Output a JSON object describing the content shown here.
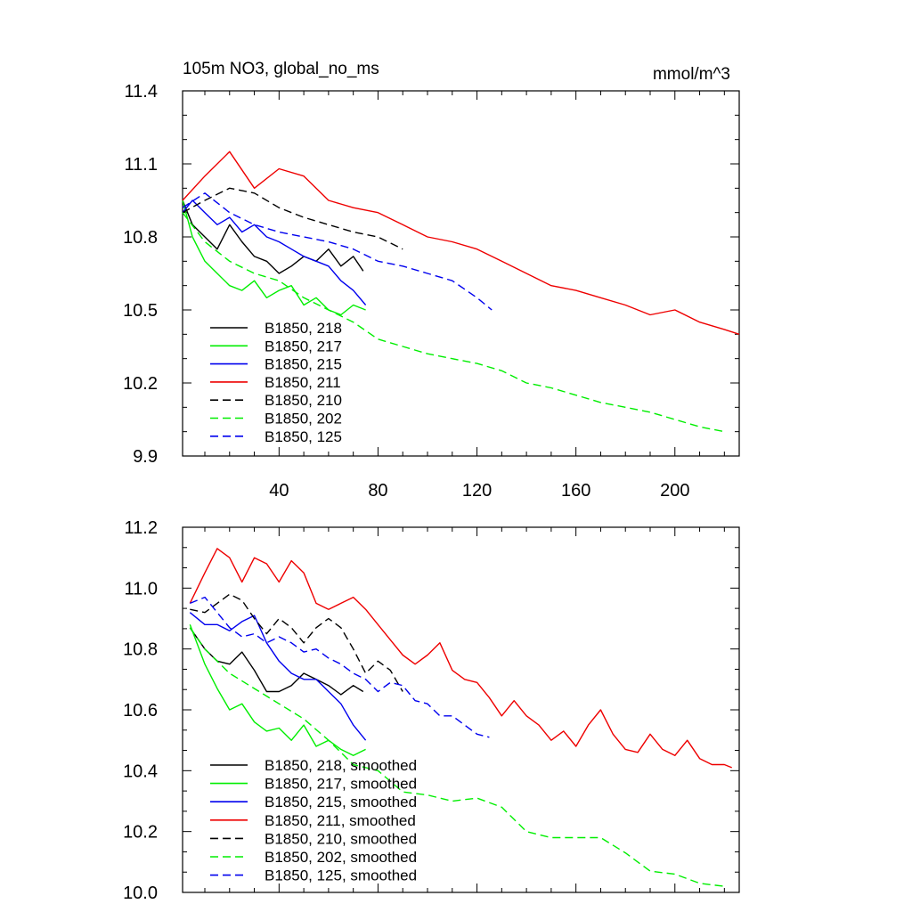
{
  "chart_data": [
    {
      "type": "line",
      "title_left": "105m NO3, global_no_ms",
      "title_right": "mmol/m^3",
      "xlabel": "",
      "ylabel": "",
      "xlim": [
        1,
        226
      ],
      "ylim": [
        9.9,
        11.4
      ],
      "xticks": [
        40,
        80,
        120,
        160,
        200
      ],
      "yticks": [
        9.9,
        10.2,
        10.5,
        10.8,
        11.1,
        11.4
      ],
      "ytick_labels": [
        "9.9",
        "10.2",
        "10.5",
        "10.8",
        "11.1",
        "11.4"
      ],
      "legend_position": "lower-left",
      "series": [
        {
          "name": "B1850, 218",
          "color": "#000000",
          "dash": "solid",
          "x": [
            1,
            5,
            10,
            15,
            20,
            25,
            30,
            35,
            40,
            45,
            50,
            55,
            60,
            65,
            70,
            74
          ],
          "y": [
            10.95,
            10.85,
            10.8,
            10.75,
            10.85,
            10.78,
            10.72,
            10.7,
            10.65,
            10.68,
            10.72,
            10.7,
            10.75,
            10.68,
            10.72,
            10.66
          ]
        },
        {
          "name": "B1850, 217",
          "color": "#00ee00",
          "dash": "solid",
          "x": [
            1,
            5,
            10,
            15,
            20,
            25,
            30,
            35,
            40,
            45,
            50,
            55,
            60,
            65,
            70,
            75
          ],
          "y": [
            10.95,
            10.8,
            10.7,
            10.65,
            10.6,
            10.58,
            10.62,
            10.55,
            10.58,
            10.6,
            10.52,
            10.55,
            10.5,
            10.48,
            10.52,
            10.5
          ]
        },
        {
          "name": "B1850, 215",
          "color": "#0000ee",
          "dash": "solid",
          "x": [
            1,
            5,
            10,
            15,
            20,
            25,
            30,
            35,
            40,
            45,
            50,
            55,
            60,
            65,
            70,
            75
          ],
          "y": [
            10.9,
            10.95,
            10.9,
            10.85,
            10.88,
            10.82,
            10.85,
            10.8,
            10.78,
            10.75,
            10.72,
            10.7,
            10.68,
            10.62,
            10.58,
            10.52
          ]
        },
        {
          "name": "B1850, 211",
          "color": "#ee0000",
          "dash": "solid",
          "x": [
            1,
            10,
            20,
            30,
            40,
            50,
            60,
            70,
            80,
            90,
            100,
            110,
            120,
            130,
            140,
            150,
            160,
            170,
            180,
            190,
            200,
            210,
            220,
            226
          ],
          "y": [
            10.95,
            11.05,
            11.15,
            11.0,
            11.08,
            11.05,
            10.95,
            10.92,
            10.9,
            10.85,
            10.8,
            10.78,
            10.75,
            10.7,
            10.65,
            10.6,
            10.58,
            10.55,
            10.52,
            10.48,
            10.5,
            10.45,
            10.42,
            10.4
          ]
        },
        {
          "name": "B1850, 210",
          "color": "#000000",
          "dash": "dashed",
          "x": [
            1,
            10,
            20,
            30,
            40,
            50,
            60,
            70,
            80,
            90
          ],
          "y": [
            10.9,
            10.95,
            11.0,
            10.98,
            10.92,
            10.88,
            10.85,
            10.82,
            10.8,
            10.75
          ]
        },
        {
          "name": "B1850, 202",
          "color": "#00ee00",
          "dash": "dashed",
          "x": [
            1,
            10,
            20,
            30,
            40,
            50,
            60,
            70,
            80,
            90,
            100,
            110,
            120,
            130,
            140,
            150,
            160,
            170,
            180,
            190,
            200,
            210,
            220
          ],
          "y": [
            10.9,
            10.78,
            10.7,
            10.65,
            10.62,
            10.55,
            10.5,
            10.45,
            10.38,
            10.35,
            10.32,
            10.3,
            10.28,
            10.25,
            10.2,
            10.18,
            10.15,
            10.12,
            10.1,
            10.08,
            10.05,
            10.02,
            10.0
          ]
        },
        {
          "name": "B1850, 125",
          "color": "#0000ee",
          "dash": "dashed",
          "x": [
            1,
            10,
            20,
            30,
            40,
            50,
            60,
            70,
            80,
            90,
            100,
            110,
            120,
            126
          ],
          "y": [
            10.92,
            10.98,
            10.9,
            10.85,
            10.82,
            10.8,
            10.78,
            10.75,
            10.7,
            10.68,
            10.65,
            10.62,
            10.55,
            10.5
          ]
        }
      ]
    },
    {
      "type": "line",
      "title_left": "",
      "title_right": "",
      "xlabel": "",
      "ylabel": "",
      "xlim": [
        1,
        226
      ],
      "ylim": [
        10.0,
        11.2
      ],
      "xticks": [
        40,
        80,
        120,
        160,
        200
      ],
      "yticks": [
        10.0,
        10.2,
        10.4,
        10.6,
        10.8,
        11.0,
        11.2
      ],
      "ytick_labels": [
        "10.0",
        "10.2",
        "10.4",
        "10.6",
        "10.8",
        "11.0",
        "11.2"
      ],
      "legend_position": "lower-left",
      "series": [
        {
          "name": "B1850, 218, smoothed",
          "color": "#000000",
          "dash": "solid",
          "x": [
            4,
            10,
            15,
            20,
            25,
            30,
            35,
            40,
            45,
            50,
            55,
            60,
            65,
            70,
            74
          ],
          "y": [
            10.87,
            10.8,
            10.76,
            10.75,
            10.79,
            10.73,
            10.66,
            10.66,
            10.68,
            10.72,
            10.7,
            10.68,
            10.65,
            10.68,
            10.66
          ]
        },
        {
          "name": "B1850, 217, smoothed",
          "color": "#00ee00",
          "dash": "solid",
          "x": [
            4,
            10,
            15,
            20,
            25,
            30,
            35,
            40,
            45,
            50,
            55,
            60,
            65,
            70,
            75
          ],
          "y": [
            10.88,
            10.75,
            10.67,
            10.6,
            10.62,
            10.56,
            10.53,
            10.54,
            10.5,
            10.55,
            10.48,
            10.5,
            10.47,
            10.45,
            10.47
          ]
        },
        {
          "name": "B1850, 215, smoothed",
          "color": "#0000ee",
          "dash": "solid",
          "x": [
            4,
            10,
            15,
            20,
            25,
            30,
            35,
            40,
            45,
            50,
            55,
            60,
            65,
            70,
            75
          ],
          "y": [
            10.92,
            10.88,
            10.88,
            10.86,
            10.89,
            10.91,
            10.82,
            10.76,
            10.72,
            10.7,
            10.7,
            10.66,
            10.62,
            10.55,
            10.5
          ]
        },
        {
          "name": "B1850, 211, smoothed",
          "color": "#ee0000",
          "dash": "solid",
          "x": [
            4,
            10,
            15,
            20,
            25,
            30,
            35,
            40,
            45,
            50,
            55,
            60,
            65,
            70,
            75,
            80,
            85,
            90,
            95,
            100,
            105,
            110,
            115,
            120,
            125,
            130,
            135,
            140,
            145,
            150,
            155,
            160,
            165,
            170,
            175,
            180,
            185,
            190,
            195,
            200,
            205,
            210,
            215,
            220,
            223
          ],
          "y": [
            10.95,
            11.05,
            11.13,
            11.1,
            11.02,
            11.1,
            11.08,
            11.02,
            11.09,
            11.05,
            10.95,
            10.93,
            10.95,
            10.97,
            10.93,
            10.88,
            10.83,
            10.78,
            10.75,
            10.78,
            10.82,
            10.73,
            10.7,
            10.69,
            10.64,
            10.58,
            10.63,
            10.58,
            10.55,
            10.5,
            10.53,
            10.48,
            10.55,
            10.6,
            10.52,
            10.47,
            10.46,
            10.52,
            10.47,
            10.45,
            10.5,
            10.44,
            10.42,
            10.42,
            10.41
          ]
        },
        {
          "name": "B1850, 210, smoothed",
          "color": "#000000",
          "dash": "dashed",
          "x": [
            4,
            10,
            15,
            20,
            25,
            30,
            35,
            40,
            45,
            50,
            55,
            60,
            65,
            70,
            75,
            80,
            85,
            90
          ],
          "y": [
            10.93,
            10.92,
            10.95,
            10.98,
            10.96,
            10.9,
            10.85,
            10.9,
            10.87,
            10.82,
            10.87,
            10.9,
            10.87,
            10.8,
            10.72,
            10.76,
            10.73,
            10.66
          ]
        },
        {
          "name": "B1850, 202, smoothed",
          "color": "#00ee00",
          "dash": "dashed",
          "x": [
            4,
            10,
            20,
            30,
            40,
            50,
            60,
            70,
            80,
            90,
            100,
            110,
            120,
            130,
            140,
            150,
            160,
            170,
            180,
            190,
            200,
            210,
            220
          ],
          "y": [
            10.87,
            10.8,
            10.72,
            10.67,
            10.62,
            10.57,
            10.5,
            10.42,
            10.4,
            10.33,
            10.32,
            10.3,
            10.31,
            10.28,
            10.2,
            10.18,
            10.18,
            10.18,
            10.13,
            10.07,
            10.06,
            10.03,
            10.02
          ]
        },
        {
          "name": "B1850, 125, smoothed",
          "color": "#0000ee",
          "dash": "dashed",
          "x": [
            4,
            10,
            15,
            20,
            25,
            30,
            35,
            40,
            45,
            50,
            55,
            60,
            65,
            70,
            75,
            80,
            85,
            90,
            95,
            100,
            105,
            110,
            115,
            120,
            125
          ],
          "y": [
            10.95,
            10.97,
            10.92,
            10.87,
            10.84,
            10.85,
            10.82,
            10.84,
            10.82,
            10.79,
            10.8,
            10.77,
            10.75,
            10.72,
            10.7,
            10.66,
            10.69,
            10.68,
            10.63,
            10.62,
            10.58,
            10.58,
            10.55,
            10.52,
            10.51
          ]
        }
      ]
    }
  ]
}
